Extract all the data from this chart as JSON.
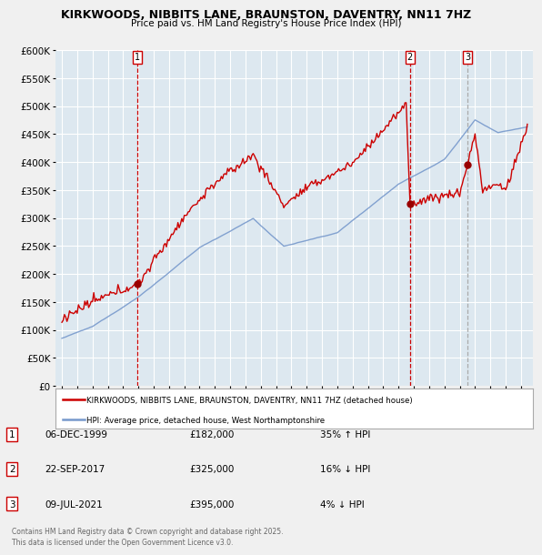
{
  "title": "KIRKWOODS, NIBBITS LANE, BRAUNSTON, DAVENTRY, NN11 7HZ",
  "subtitle": "Price paid vs. HM Land Registry's House Price Index (HPI)",
  "bg_color": "#f0f0f0",
  "plot_bg_color": "#dde8f0",
  "red_color": "#cc0000",
  "blue_color": "#7799cc",
  "grid_color": "#ffffff",
  "ylim": [
    0,
    600000
  ],
  "yticks": [
    0,
    50000,
    100000,
    150000,
    200000,
    250000,
    300000,
    350000,
    400000,
    450000,
    500000,
    550000,
    600000
  ],
  "sale_years": [
    1999.917,
    2017.75,
    2021.5
  ],
  "sale_prices": [
    182000,
    325000,
    395000
  ],
  "sale_labels": [
    "1",
    "2",
    "3"
  ],
  "vline_styles": [
    "dashed_red",
    "dashed_red",
    "dashed_gray"
  ],
  "table_rows": [
    [
      "1",
      "06-DEC-1999",
      "£182,000",
      "35% ↑ HPI"
    ],
    [
      "2",
      "22-SEP-2017",
      "£325,000",
      "16% ↓ HPI"
    ],
    [
      "3",
      "09-JUL-2021",
      "£395,000",
      "4% ↓ HPI"
    ]
  ],
  "legend_line1": "KIRKWOODS, NIBBITS LANE, BRAUNSTON, DAVENTRY, NN11 7HZ (detached house)",
  "legend_line2": "HPI: Average price, detached house, West Northamptonshire",
  "footer": "Contains HM Land Registry data © Crown copyright and database right 2025.\nThis data is licensed under the Open Government Licence v3.0."
}
